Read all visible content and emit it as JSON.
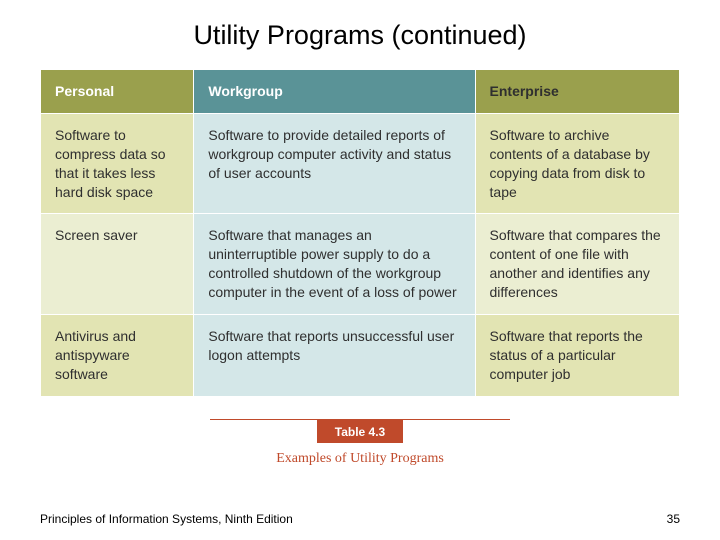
{
  "title": "Utility Programs (continued)",
  "table": {
    "headers": {
      "personal": "Personal",
      "workgroup": "Workgroup",
      "enterprise": "Enterprise"
    },
    "rows": [
      {
        "personal": "Software to compress data so that it takes less hard disk space",
        "workgroup": "Software to provide detailed reports of workgroup computer activity and status of user accounts",
        "enterprise": "Software to archive contents of a database by copying data from disk to tape"
      },
      {
        "personal": "Screen saver",
        "workgroup": "Software that manages an uninterruptible power supply to do a controlled shutdown of the workgroup computer in the event of a loss of power",
        "enterprise": "Software that compares the content of one file with another and identifies any differences"
      },
      {
        "personal": "Antivirus and antispyware software",
        "workgroup": "Software that reports unsuccessful user logon attempts",
        "enterprise": "Software that reports the status of a particular computer job"
      }
    ]
  },
  "caption": {
    "label": "Table 4.3",
    "text": "Examples of Utility Programs"
  },
  "footer": {
    "source": "Principles of Information Systems, Ninth Edition",
    "page": "35"
  },
  "colors": {
    "header_olive": "#9aa04d",
    "header_teal": "#5a9397",
    "cell_teal_light": "#d4e7e8",
    "cell_olive_a": "#e2e4b3",
    "cell_olive_b": "#ebeed2",
    "accent_red": "#c04a2b"
  }
}
